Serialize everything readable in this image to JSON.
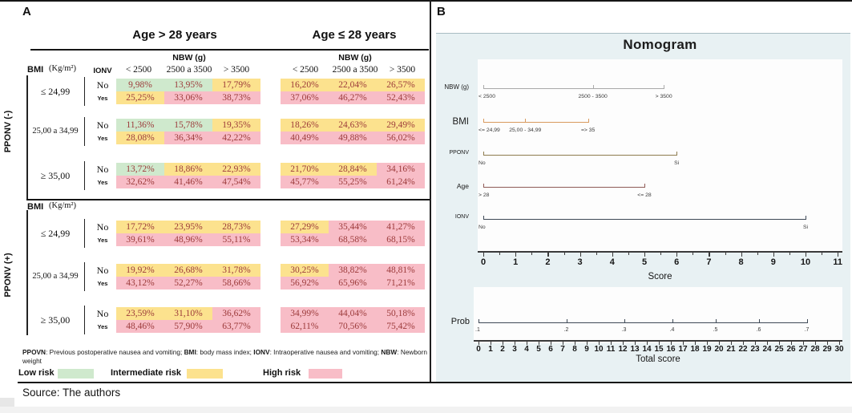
{
  "panel_a": {
    "label": "A",
    "age_group_headers": [
      "Age > 28 years",
      "Age ≤ 28 years"
    ],
    "bmi_header": "BMI",
    "bmi_unit": "(Kg/m²)",
    "ionv_header": "IONV",
    "nbw_header": "NBW (g)",
    "section_labels": [
      "PPONV (-)",
      "PPONV (+)"
    ],
    "footnote": [
      {
        "t": "PPOVN",
        "b": true
      },
      {
        "t": ": Previous postoperative nausea and vomiting; ",
        "b": false
      },
      {
        "t": "BMI",
        "b": true
      },
      {
        "t": ": body mass index; ",
        "b": false
      },
      {
        "t": "IONV",
        "b": true
      },
      {
        "t": ": Intraoperative nausea and vomiting; ",
        "b": false
      },
      {
        "t": "NBW",
        "b": true
      },
      {
        "t": ": Newborn weight",
        "b": false
      }
    ],
    "legend": [
      {
        "label": "Low risk",
        "risk": "low"
      },
      {
        "label": "Intermediate  risk",
        "risk": "intermediate"
      },
      {
        "label": "High  risk",
        "risk": "high"
      }
    ],
    "risk_colors": {
      "low": "#cfe9cd",
      "intermediate": "#fce28e",
      "high": "#f8bdc7"
    },
    "cell_text_color": "#9c3b3b"
  },
  "panel_b": {
    "label": "B",
    "title": "Nomogram"
  },
  "source": "Source: The authors",
  "chart_data": [
    {
      "type": "table",
      "column_groups": [
        "Age > 28 years",
        "Age ≤ 28 years"
      ],
      "columns": [
        "< 2500",
        "2500 a 3500",
        "> 3500"
      ],
      "sections": [
        {
          "pponv": "PPONV (-)",
          "groups": [
            {
              "bmi": "≤ 24,99",
              "rows": [
                {
                  "ionv": "No",
                  "age_gt_28": [
                    {
                      "value": "9,98%",
                      "risk": "low"
                    },
                    {
                      "value": "13,95%",
                      "risk": "low"
                    },
                    {
                      "value": "17,79%",
                      "risk": "intermediate"
                    }
                  ],
                  "age_le_28": [
                    {
                      "value": "16,20%",
                      "risk": "intermediate"
                    },
                    {
                      "value": "22,04%",
                      "risk": "intermediate"
                    },
                    {
                      "value": "26,57%",
                      "risk": "intermediate"
                    }
                  ]
                },
                {
                  "ionv": "Yes",
                  "age_gt_28": [
                    {
                      "value": "25,25%",
                      "risk": "intermediate"
                    },
                    {
                      "value": "33,06%",
                      "risk": "high"
                    },
                    {
                      "value": "38,73%",
                      "risk": "high"
                    }
                  ],
                  "age_le_28": [
                    {
                      "value": "37,06%",
                      "risk": "high"
                    },
                    {
                      "value": "46,27%",
                      "risk": "high"
                    },
                    {
                      "value": "52,43%",
                      "risk": "high"
                    }
                  ]
                }
              ]
            },
            {
              "bmi": "25,00 a 34,99",
              "rows": [
                {
                  "ionv": "No",
                  "age_gt_28": [
                    {
                      "value": "11,36%",
                      "risk": "low"
                    },
                    {
                      "value": "15,78%",
                      "risk": "low"
                    },
                    {
                      "value": "19,35%",
                      "risk": "intermediate"
                    }
                  ],
                  "age_le_28": [
                    {
                      "value": "18,26%",
                      "risk": "intermediate"
                    },
                    {
                      "value": "24,63%",
                      "risk": "intermediate"
                    },
                    {
                      "value": "29,49%",
                      "risk": "intermediate"
                    }
                  ]
                },
                {
                  "ionv": "Yes",
                  "age_gt_28": [
                    {
                      "value": "28,08%",
                      "risk": "intermediate"
                    },
                    {
                      "value": "36,34%",
                      "risk": "high"
                    },
                    {
                      "value": "42,22%",
                      "risk": "high"
                    }
                  ],
                  "age_le_28": [
                    {
                      "value": "40,49%",
                      "risk": "high"
                    },
                    {
                      "value": "49,88%",
                      "risk": "high"
                    },
                    {
                      "value": "56,02%",
                      "risk": "high"
                    }
                  ]
                }
              ]
            },
            {
              "bmi": "≥ 35,00",
              "rows": [
                {
                  "ionv": "No",
                  "age_gt_28": [
                    {
                      "value": "13,72%",
                      "risk": "low"
                    },
                    {
                      "value": "18,86%",
                      "risk": "intermediate"
                    },
                    {
                      "value": "22,93%",
                      "risk": "intermediate"
                    }
                  ],
                  "age_le_28": [
                    {
                      "value": "21,70%",
                      "risk": "intermediate"
                    },
                    {
                      "value": "28,84%",
                      "risk": "intermediate"
                    },
                    {
                      "value": "34,16%",
                      "risk": "high"
                    }
                  ]
                },
                {
                  "ionv": "Yes",
                  "age_gt_28": [
                    {
                      "value": "32,62%",
                      "risk": "high"
                    },
                    {
                      "value": "41,46%",
                      "risk": "high"
                    },
                    {
                      "value": "47,54%",
                      "risk": "high"
                    }
                  ],
                  "age_le_28": [
                    {
                      "value": "45,77%",
                      "risk": "high"
                    },
                    {
                      "value": "55,25%",
                      "risk": "high"
                    },
                    {
                      "value": "61,24%",
                      "risk": "high"
                    }
                  ]
                }
              ]
            }
          ]
        },
        {
          "pponv": "PPONV (+)",
          "groups": [
            {
              "bmi": "≤ 24,99",
              "rows": [
                {
                  "ionv": "No",
                  "age_gt_28": [
                    {
                      "value": "17,72%",
                      "risk": "intermediate"
                    },
                    {
                      "value": "23,95%",
                      "risk": "intermediate"
                    },
                    {
                      "value": "28,73%",
                      "risk": "intermediate"
                    }
                  ],
                  "age_le_28": [
                    {
                      "value": "27,29%",
                      "risk": "intermediate"
                    },
                    {
                      "value": "35,44%",
                      "risk": "high"
                    },
                    {
                      "value": "41,27%",
                      "risk": "high"
                    }
                  ]
                },
                {
                  "ionv": "Yes",
                  "age_gt_28": [
                    {
                      "value": "39,61%",
                      "risk": "high"
                    },
                    {
                      "value": "48,96%",
                      "risk": "high"
                    },
                    {
                      "value": "55,11%",
                      "risk": "high"
                    }
                  ],
                  "age_le_28": [
                    {
                      "value": "53,34%",
                      "risk": "high"
                    },
                    {
                      "value": "68,58%",
                      "risk": "high"
                    },
                    {
                      "value": "68,15%",
                      "risk": "high"
                    }
                  ]
                }
              ]
            },
            {
              "bmi": "25,00 a 34,99",
              "rows": [
                {
                  "ionv": "No",
                  "age_gt_28": [
                    {
                      "value": "19,92%",
                      "risk": "intermediate"
                    },
                    {
                      "value": "26,68%",
                      "risk": "intermediate"
                    },
                    {
                      "value": "31,78%",
                      "risk": "intermediate"
                    }
                  ],
                  "age_le_28": [
                    {
                      "value": "30,25%",
                      "risk": "intermediate"
                    },
                    {
                      "value": "38,82%",
                      "risk": "high"
                    },
                    {
                      "value": "48,81%",
                      "risk": "high"
                    }
                  ]
                },
                {
                  "ionv": "Yes",
                  "age_gt_28": [
                    {
                      "value": "43,12%",
                      "risk": "high"
                    },
                    {
                      "value": "52,27%",
                      "risk": "high"
                    },
                    {
                      "value": "58,66%",
                      "risk": "high"
                    }
                  ],
                  "age_le_28": [
                    {
                      "value": "56,92%",
                      "risk": "high"
                    },
                    {
                      "value": "65,96%",
                      "risk": "high"
                    },
                    {
                      "value": "71,21%",
                      "risk": "high"
                    }
                  ]
                }
              ]
            },
            {
              "bmi": "≥ 35,00",
              "rows": [
                {
                  "ionv": "No",
                  "age_gt_28": [
                    {
                      "value": "23,59%",
                      "risk": "intermediate"
                    },
                    {
                      "value": "31,10%",
                      "risk": "intermediate"
                    },
                    {
                      "value": "36,62%",
                      "risk": "high"
                    }
                  ],
                  "age_le_28": [
                    {
                      "value": "34,99%",
                      "risk": "high"
                    },
                    {
                      "value": "44,04%",
                      "risk": "high"
                    },
                    {
                      "value": "50,18%",
                      "risk": "high"
                    }
                  ]
                },
                {
                  "ionv": "Yes",
                  "age_gt_28": [
                    {
                      "value": "48,46%",
                      "risk": "high"
                    },
                    {
                      "value": "57,90%",
                      "risk": "high"
                    },
                    {
                      "value": "63,77%",
                      "risk": "high"
                    }
                  ],
                  "age_le_28": [
                    {
                      "value": "62,11%",
                      "risk": "high"
                    },
                    {
                      "value": "70,56%",
                      "risk": "high"
                    },
                    {
                      "value": "75,42%",
                      "risk": "high"
                    }
                  ]
                }
              ]
            }
          ]
        }
      ]
    },
    {
      "type": "nomogram",
      "title": "Nomogram",
      "score_axis": {
        "label": "Score",
        "min": 0,
        "max": 11,
        "tick_step": 1,
        "minor_step": 0.5
      },
      "rows": [
        {
          "name": "NBW (g)",
          "color": "#a9a9a9",
          "points": [
            {
              "label": "< 2500",
              "score": 0
            },
            {
              "label": "2500 - 3500",
              "score": 3.4
            },
            {
              "label": "> 3500",
              "score": 5.6
            }
          ]
        },
        {
          "name": "BMI",
          "color": "#d89a5e",
          "points": [
            {
              "label": "<= 24,99",
              "score": 0
            },
            {
              "label": "25,00 - 34,99",
              "score": 1.3
            },
            {
              "label": "=> 35",
              "score": 3.25
            }
          ]
        },
        {
          "name": "PPONV",
          "color": "#8e7b4e",
          "points": [
            {
              "label": "No",
              "score": 0
            },
            {
              "label": "Si",
              "score": 6
            }
          ]
        },
        {
          "name": "Age",
          "color": "#8f5a56",
          "points": [
            {
              "label": "> 28",
              "score": 0
            },
            {
              "label": "<= 28",
              "score": 5
            }
          ]
        },
        {
          "name": "IONV",
          "color": "#3e4956",
          "points": [
            {
              "label": "No",
              "score": 0
            },
            {
              "label": "Si",
              "score": 10
            }
          ]
        }
      ],
      "prob_axis": {
        "label": "Prob",
        "color": "#3e4956",
        "points": [
          {
            "label": ".1",
            "x": 0
          },
          {
            "label": ".2",
            "x": 7.3
          },
          {
            "label": ".3",
            "x": 12.1
          },
          {
            "label": ".4",
            "x": 16.1
          },
          {
            "label": ".5",
            "x": 19.7
          },
          {
            "label": ".6",
            "x": 23.3
          },
          {
            "label": ".7",
            "x": 27.3
          }
        ]
      },
      "total_axis": {
        "label": "Total score",
        "min": 0,
        "max": 30,
        "tick_step": 1
      }
    }
  ]
}
